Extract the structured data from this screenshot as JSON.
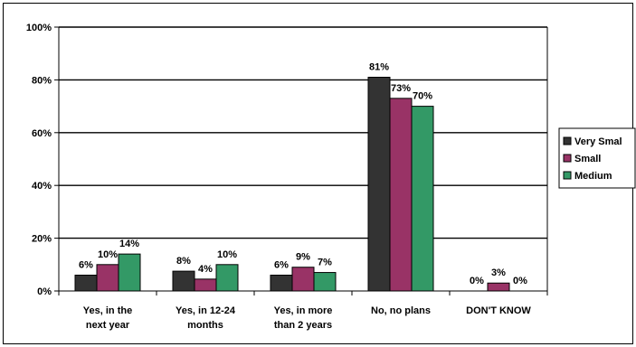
{
  "chart_data": {
    "type": "bar",
    "categories": [
      [
        "Yes, in the",
        "next year"
      ],
      [
        "Yes, in 12-24",
        "months"
      ],
      [
        "Yes, in more",
        "than 2 years"
      ],
      [
        "No, no plans"
      ],
      [
        "DON'T KNOW"
      ]
    ],
    "series": [
      {
        "name": "Very Smal",
        "color": "#333333",
        "values": [
          6,
          7.5,
          6,
          81,
          0
        ],
        "labels": [
          "6%",
          "8%",
          "6%",
          "81%",
          "0%"
        ]
      },
      {
        "name": "Small",
        "color": "#993366",
        "values": [
          10,
          4.5,
          9,
          73,
          3
        ],
        "labels": [
          "10%",
          "4%",
          "9%",
          "73%",
          "3%"
        ]
      },
      {
        "name": "Medium",
        "color": "#339966",
        "values": [
          14,
          10,
          7,
          70,
          0
        ],
        "labels": [
          "14%",
          "10%",
          "7%",
          "70%",
          "0%"
        ]
      }
    ],
    "y_ticks": [
      "0%",
      "20%",
      "40%",
      "60%",
      "80%",
      "100%"
    ],
    "ylim": [
      0,
      100
    ],
    "grid": true,
    "legend_position": "right"
  }
}
